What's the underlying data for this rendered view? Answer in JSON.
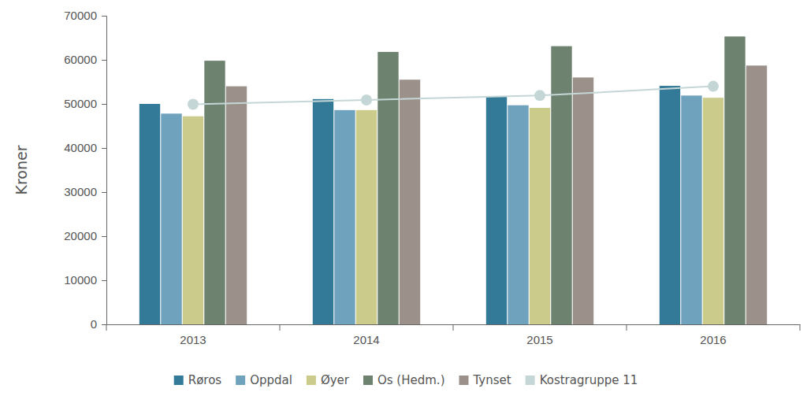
{
  "chart_data": {
    "type": "bar",
    "y_label": "Kroner",
    "categories": [
      "2013",
      "2014",
      "2015",
      "2016"
    ],
    "series": [
      {
        "name": "Røros",
        "color": "#337a99",
        "values": [
          50000,
          51100,
          51600,
          54100
        ]
      },
      {
        "name": "Oppdal",
        "color": "#6fa3bd",
        "values": [
          47800,
          48600,
          49700,
          51900
        ]
      },
      {
        "name": "Øyer",
        "color": "#cbcb8c",
        "values": [
          47200,
          48600,
          49100,
          51400
        ]
      },
      {
        "name": "Os (Hedm.)",
        "color": "#6e8270",
        "values": [
          59800,
          61800,
          63100,
          65300
        ]
      },
      {
        "name": "Tynset",
        "color": "#9c918a",
        "values": [
          54000,
          55500,
          56000,
          58700
        ]
      },
      {
        "name": "Kostragruppe 11",
        "color": "#c5d6d6",
        "type": "line",
        "marker": "circle",
        "values": [
          49900,
          50900,
          51900,
          54000
        ]
      }
    ],
    "ylim": [
      0,
      70000
    ],
    "yticks": [
      0,
      10000,
      20000,
      30000,
      40000,
      50000,
      60000,
      70000
    ],
    "grid": false,
    "legend": "bottom"
  }
}
